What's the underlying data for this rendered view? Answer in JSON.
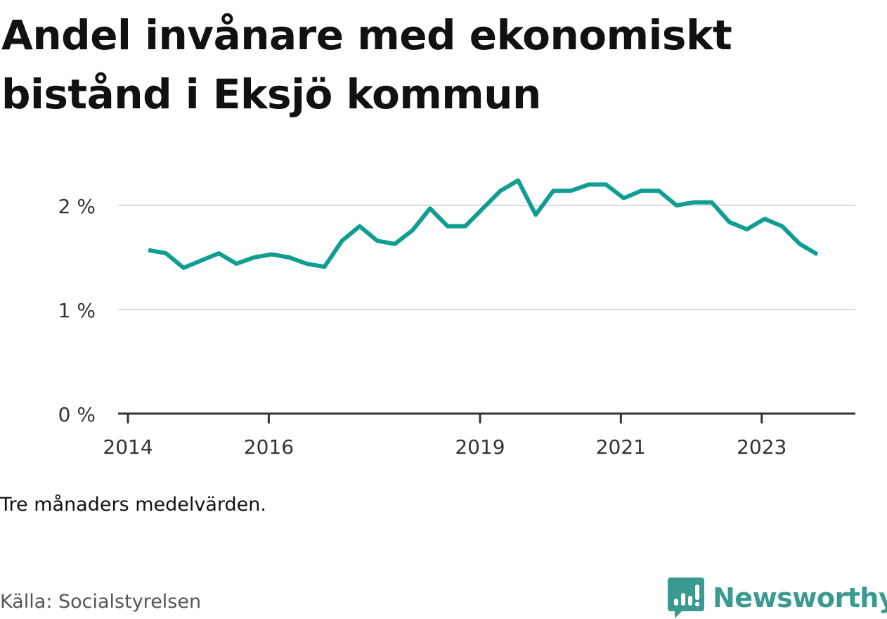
{
  "chart_data": {
    "type": "line",
    "title": "Andel invånare med ekonomiskt bistånd i Eksjö kommun",
    "xlabel": "",
    "ylabel": "",
    "x_ticks": [
      {
        "label": "2014",
        "value": 2014.0
      },
      {
        "label": "2016",
        "value": 2016.0
      },
      {
        "label": "2019",
        "value": 2019.0
      },
      {
        "label": "2021",
        "value": 2021.0
      },
      {
        "label": "2023",
        "value": 2023.0
      }
    ],
    "y_ticks": [
      {
        "label": "0 %",
        "value": 0
      },
      {
        "label": "1 %",
        "value": 1
      },
      {
        "label": "2 %",
        "value": 2
      }
    ],
    "xlim": [
      2013.86,
      2024.33
    ],
    "ylim": [
      0,
      2.5
    ],
    "grid": true,
    "series": [
      {
        "name": "Andel invånare med ekonomiskt bistånd",
        "color": "#0f9e91",
        "x": [
          2014.29,
          2014.54,
          2014.79,
          2015.04,
          2015.29,
          2015.54,
          2015.79,
          2016.04,
          2016.29,
          2016.54,
          2016.79,
          2017.04,
          2017.29,
          2017.54,
          2017.79,
          2018.04,
          2018.29,
          2018.54,
          2018.79,
          2019.04,
          2019.29,
          2019.54,
          2019.79,
          2020.04,
          2020.29,
          2020.54,
          2020.79,
          2021.04,
          2021.29,
          2021.54,
          2021.79,
          2022.04,
          2022.29,
          2022.54,
          2022.79,
          2023.04,
          2023.29,
          2023.54,
          2023.79
        ],
        "values": [
          1.57,
          1.54,
          1.4,
          1.47,
          1.54,
          1.44,
          1.5,
          1.53,
          1.5,
          1.44,
          1.41,
          1.66,
          1.8,
          1.66,
          1.63,
          1.76,
          1.97,
          1.8,
          1.8,
          1.97,
          2.14,
          2.24,
          1.91,
          2.14,
          2.14,
          2.2,
          2.2,
          2.07,
          2.14,
          2.14,
          2.0,
          2.03,
          2.03,
          1.84,
          1.77,
          1.87,
          1.8,
          1.63,
          1.53
        ]
      }
    ],
    "note": "Tre månaders medelvärden.",
    "source": "Källa: Socialstyrelsen"
  },
  "brand": {
    "name": "Newsworthy",
    "logo_icon": "newsworthy-logo-icon",
    "color": "#3a9a90"
  }
}
